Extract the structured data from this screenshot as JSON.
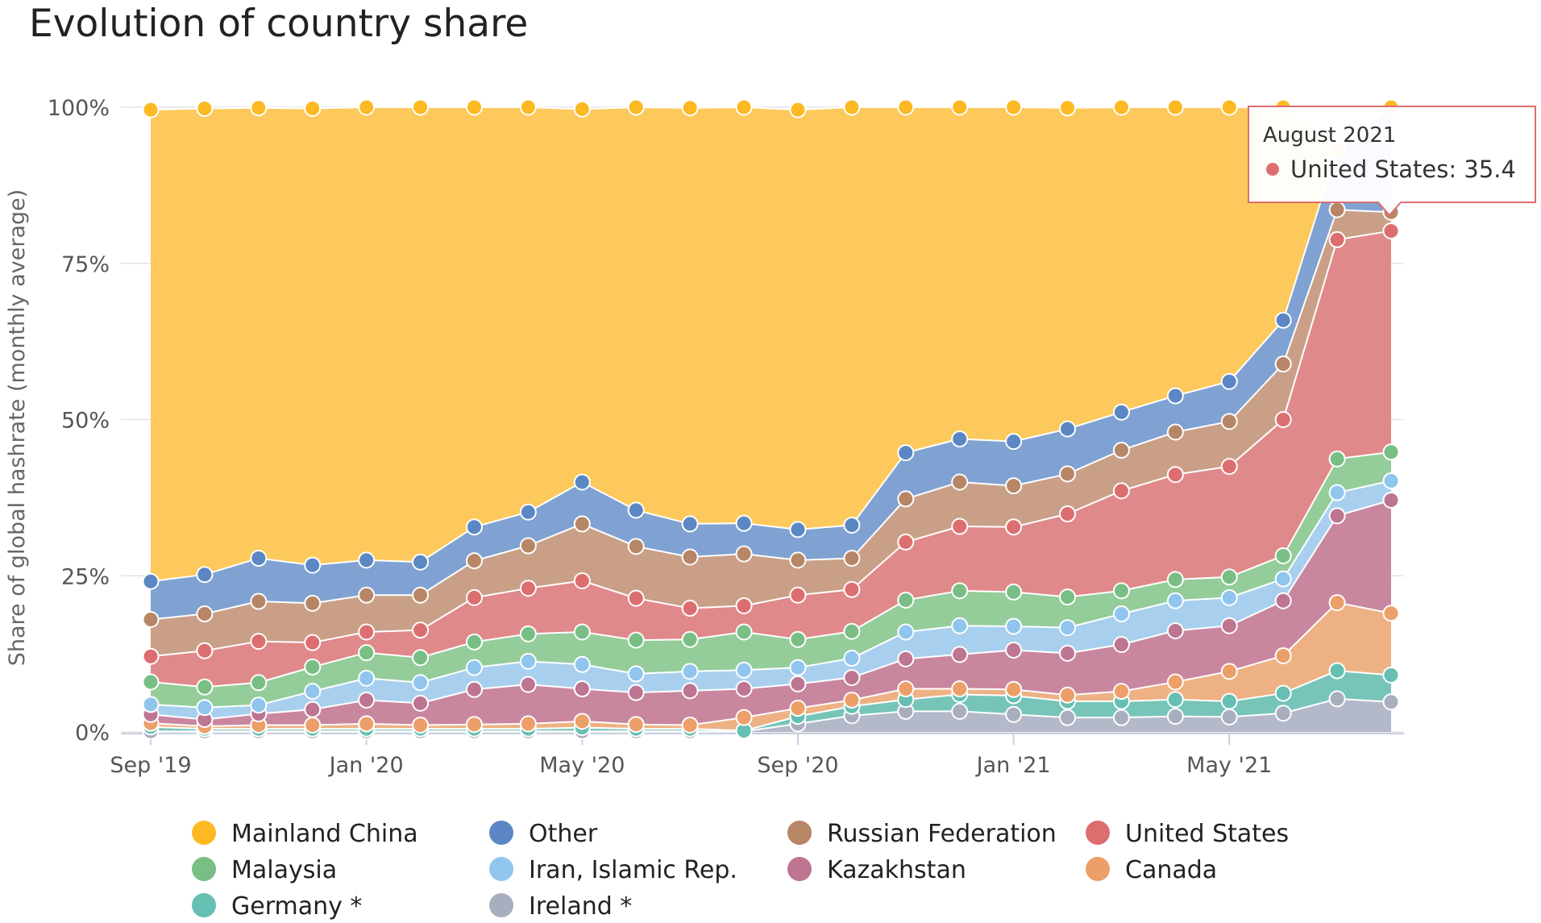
{
  "chart_data": {
    "type": "area",
    "stacked": true,
    "title": "Evolution of country share",
    "ylabel": "Share of global hashrate (monthly average)",
    "xlabel": "",
    "ylim": [
      0,
      100
    ],
    "y_ticks": [
      "0%",
      "25%",
      "50%",
      "75%",
      "100%"
    ],
    "x": [
      "2019-09",
      "2019-10",
      "2019-11",
      "2019-12",
      "2020-01",
      "2020-02",
      "2020-03",
      "2020-04",
      "2020-05",
      "2020-06",
      "2020-07",
      "2020-08",
      "2020-09",
      "2020-10",
      "2020-11",
      "2020-12",
      "2021-01",
      "2021-02",
      "2021-03",
      "2021-04",
      "2021-05",
      "2021-06",
      "2021-07",
      "2021-08"
    ],
    "x_tick_labels": [
      {
        "index": 0,
        "label": "Sep '19"
      },
      {
        "index": 4,
        "label": "Jan '20"
      },
      {
        "index": 8,
        "label": "May '20"
      },
      {
        "index": 12,
        "label": "Sep '20"
      },
      {
        "index": 16,
        "label": "Jan '21"
      },
      {
        "index": 20,
        "label": "May '21"
      }
    ],
    "series": [
      {
        "name": "Ireland *",
        "color": "#b3b9c9",
        "values": [
          0.1,
          0.1,
          0.1,
          0.1,
          0.1,
          0.1,
          0.1,
          0.1,
          0.1,
          0.1,
          0.1,
          0.1,
          1.3,
          2.6,
          3.3,
          3.3,
          2.8,
          2.3,
          2.3,
          2.5,
          2.4,
          3.0,
          5.3,
          4.8
        ]
      },
      {
        "name": "Germany *",
        "color": "#76c5b8",
        "values": [
          0.7,
          0.4,
          0.4,
          0.4,
          0.4,
          0.4,
          0.4,
          0.4,
          0.6,
          0.4,
          0.4,
          0.1,
          1.2,
          1.5,
          1.9,
          2.7,
          3.0,
          2.6,
          2.6,
          2.7,
          2.5,
          3.2,
          4.5,
          4.3
        ]
      },
      {
        "name": "Canada",
        "color": "#eeb184",
        "values": [
          0.6,
          0.4,
          0.6,
          0.6,
          0.8,
          0.6,
          0.7,
          0.8,
          1.0,
          0.7,
          0.6,
          2.1,
          1.3,
          1.0,
          1.7,
          0.9,
          1.0,
          1.0,
          1.6,
          2.8,
          4.8,
          6.0,
          10.9,
          9.9
        ]
      },
      {
        "name": "Kazakhstan",
        "color": "#c9869f",
        "values": [
          1.4,
          1.1,
          1.8,
          2.5,
          3.8,
          3.5,
          5.6,
          6.3,
          5.2,
          5.1,
          5.5,
          4.6,
          3.9,
          3.6,
          4.8,
          5.5,
          6.3,
          6.7,
          7.5,
          8.2,
          7.3,
          8.8,
          13.9,
          18.1
        ]
      },
      {
        "name": "Iran, Islamic Rep.",
        "color": "#a8d0ee",
        "values": [
          1.6,
          1.9,
          1.4,
          2.9,
          3.5,
          3.3,
          3.5,
          3.7,
          3.9,
          3.0,
          3.1,
          3.0,
          2.6,
          3.1,
          4.3,
          4.6,
          3.8,
          4.1,
          4.9,
          4.8,
          4.5,
          3.5,
          3.7,
          3.1
        ]
      },
      {
        "name": "Malaysia",
        "color": "#94cc9a",
        "values": [
          3.6,
          3.3,
          3.6,
          3.9,
          4.1,
          4.0,
          4.1,
          4.4,
          5.2,
          5.4,
          5.1,
          6.1,
          4.5,
          4.3,
          5.1,
          5.6,
          5.5,
          4.9,
          3.7,
          3.4,
          3.3,
          3.7,
          5.4,
          4.6
        ]
      },
      {
        "name": "United States",
        "color": "#e0898a",
        "values": [
          4.1,
          5.8,
          6.6,
          3.9,
          3.3,
          4.4,
          7.1,
          7.3,
          8.2,
          6.7,
          5.0,
          4.2,
          7.1,
          6.7,
          9.3,
          10.3,
          10.4,
          13.3,
          16.0,
          16.8,
          17.7,
          21.8,
          35.1,
          35.4
        ]
      },
      {
        "name": "Russian Federation",
        "color": "#c9a087",
        "values": [
          5.9,
          5.9,
          6.4,
          6.3,
          5.9,
          5.6,
          5.9,
          6.8,
          9.1,
          8.3,
          8.2,
          8.3,
          5.6,
          5.0,
          6.9,
          7.1,
          6.6,
          6.4,
          6.5,
          6.8,
          7.2,
          8.9,
          4.8,
          3.0
        ]
      },
      {
        "name": "Other",
        "color": "#7fa2d2",
        "values": [
          6.1,
          6.3,
          6.9,
          6.1,
          5.6,
          5.3,
          5.4,
          5.4,
          6.7,
          5.8,
          5.3,
          4.9,
          4.9,
          5.3,
          7.4,
          6.9,
          7.1,
          7.2,
          6.1,
          5.8,
          6.4,
          7.0,
          9.6,
          16.8
        ]
      },
      {
        "name": "Mainland China",
        "color": "#fdc95c",
        "values": [
          75.5,
          74.6,
          72.1,
          73.1,
          72.5,
          72.8,
          67.2,
          64.8,
          59.7,
          64.5,
          66.6,
          66.6,
          67.2,
          66.9,
          55.3,
          53.1,
          53.5,
          51.4,
          48.8,
          46.2,
          43.9,
          34.1,
          0,
          0
        ]
      }
    ],
    "markers": [
      {
        "name": "Mainland China",
        "color": "#fcb922"
      },
      {
        "name": "Other",
        "color": "#5b87c4"
      },
      {
        "name": "Russian Federation",
        "color": "#b78666"
      },
      {
        "name": "United States",
        "color": "#dd6e70"
      },
      {
        "name": "Malaysia",
        "color": "#79be84"
      },
      {
        "name": "Iran, Islamic Rep.",
        "color": "#90c5ee"
      },
      {
        "name": "Kazakhstan",
        "color": "#bd7592"
      },
      {
        "name": "Canada",
        "color": "#ec9f68"
      },
      {
        "name": "Germany *",
        "color": "#66bfb3"
      },
      {
        "name": "Ireland *",
        "color": "#a8aebe"
      }
    ],
    "legend": {
      "placement": "bottom",
      "items": [
        "Mainland China",
        "Other",
        "Russian Federation",
        "United States",
        "Malaysia",
        "Iran, Islamic Rep.",
        "Kazakhstan",
        "Canada",
        "Germany *",
        "Ireland *"
      ]
    },
    "grid": {
      "y": true,
      "x": false
    },
    "tooltip": {
      "visible": true,
      "header": "August 2021",
      "series": "United States",
      "separator": ":",
      "value": "35.4",
      "point_index": 23,
      "marker_color": "#dd6e70"
    }
  }
}
